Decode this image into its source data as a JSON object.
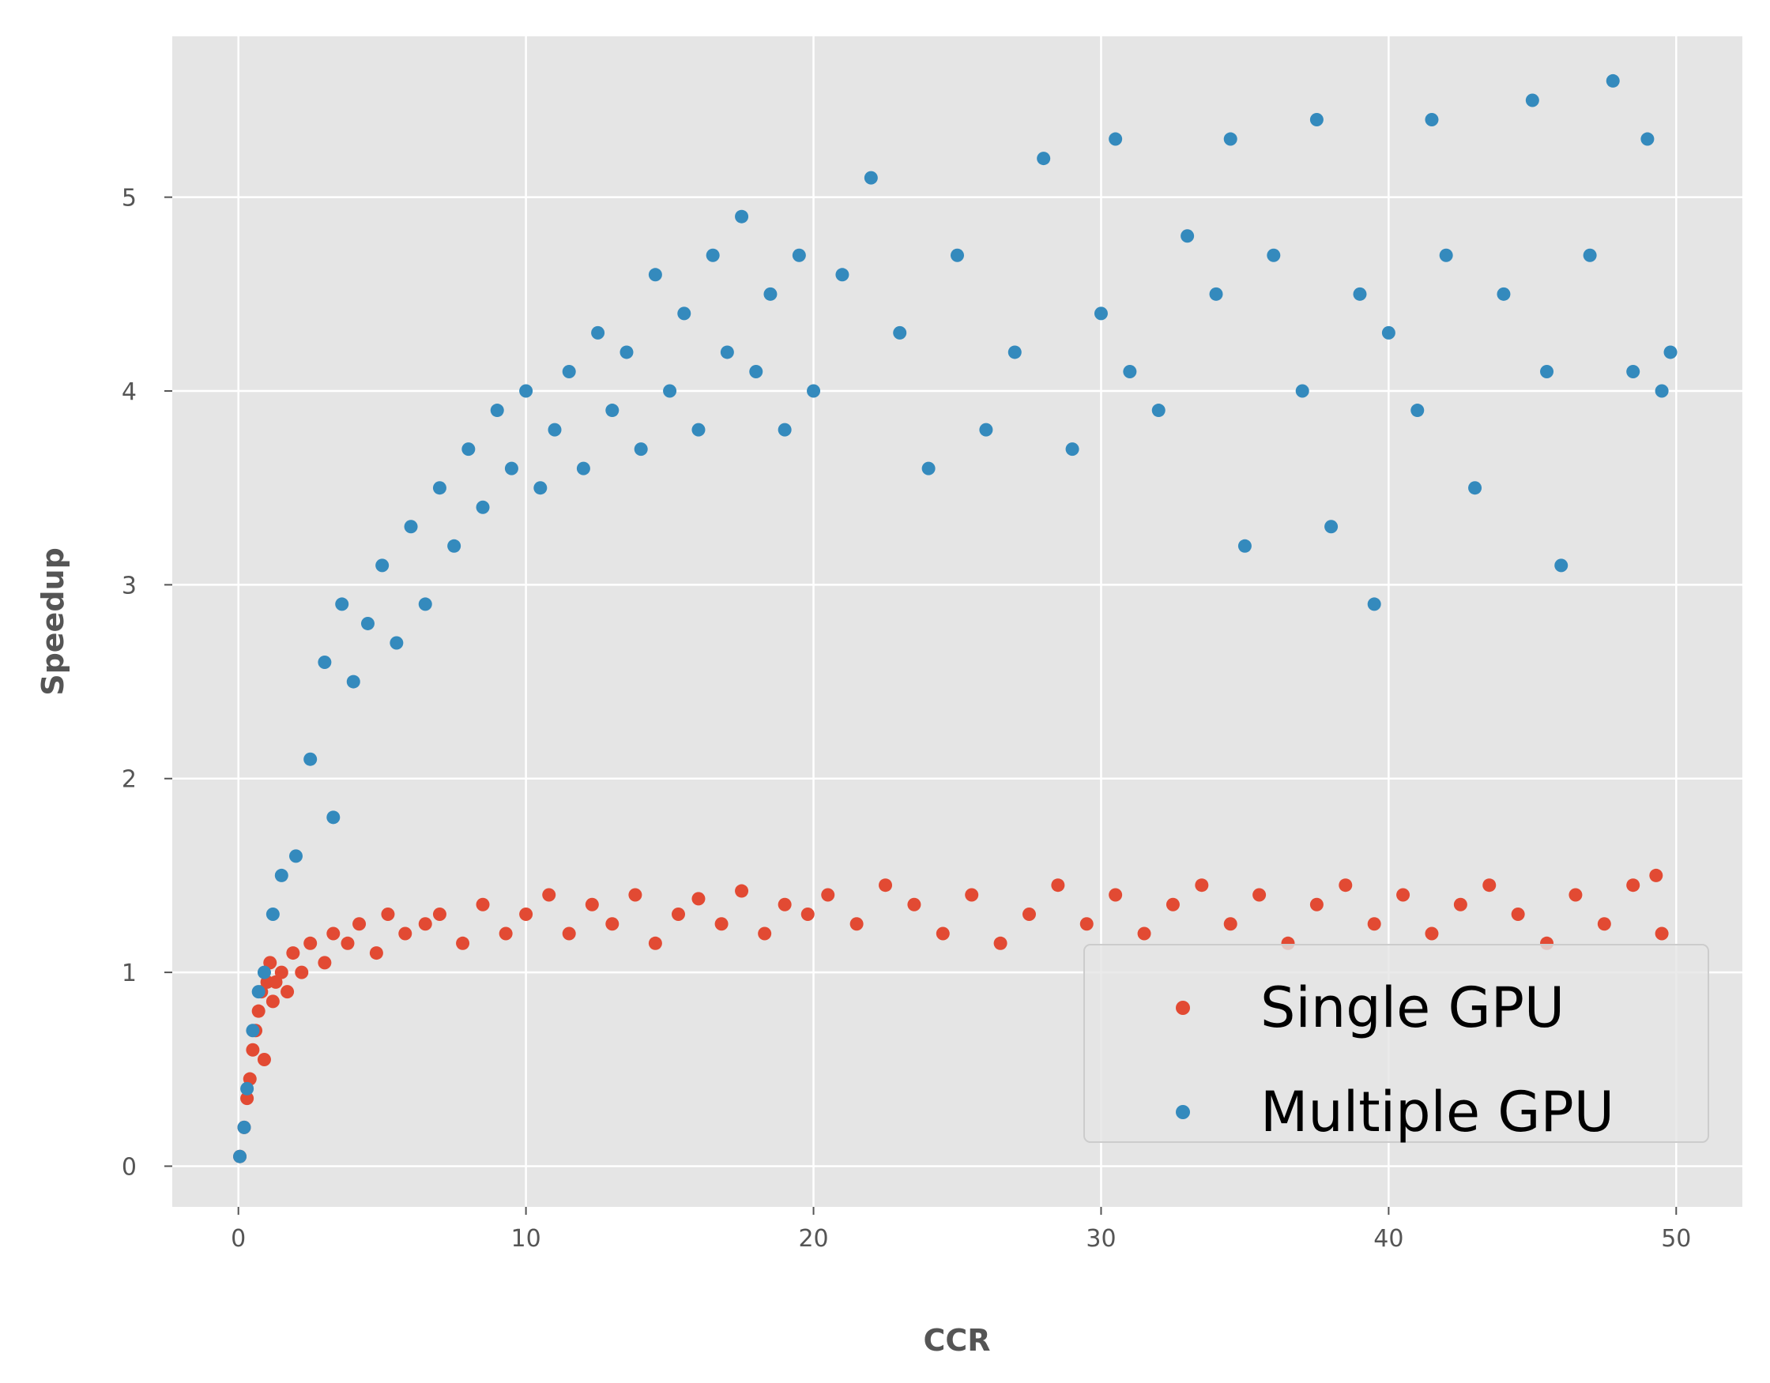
{
  "colors": {
    "single": "#E24A33",
    "multiple": "#348ABD",
    "panel": "#E5E5E5",
    "grid": "#FFFFFF",
    "text": "#555555"
  },
  "chart_data": {
    "type": "scatter",
    "xlabel": "CCR",
    "ylabel": "Speedup",
    "xlim": [
      -2.3,
      52.3
    ],
    "ylim": [
      -0.21,
      5.83
    ],
    "xticks": [
      0,
      10,
      20,
      30,
      40,
      50
    ],
    "yticks": [
      0,
      1,
      2,
      3,
      4,
      5
    ],
    "grid": true,
    "legend_position": "lower right",
    "legend": [
      "Single GPU",
      "Multiple GPU"
    ],
    "series": [
      {
        "name": "Single GPU",
        "color": "#E24A33",
        "points": [
          [
            0.05,
            0.05
          ],
          [
            0.2,
            0.2
          ],
          [
            0.3,
            0.35
          ],
          [
            0.4,
            0.45
          ],
          [
            0.5,
            0.6
          ],
          [
            0.6,
            0.7
          ],
          [
            0.7,
            0.8
          ],
          [
            0.8,
            0.9
          ],
          [
            0.9,
            0.55
          ],
          [
            1.0,
            0.95
          ],
          [
            1.1,
            1.05
          ],
          [
            1.2,
            0.85
          ],
          [
            1.3,
            0.95
          ],
          [
            1.5,
            1.0
          ],
          [
            1.7,
            0.9
          ],
          [
            1.9,
            1.1
          ],
          [
            2.2,
            1.0
          ],
          [
            2.5,
            1.15
          ],
          [
            3.0,
            1.05
          ],
          [
            3.3,
            1.2
          ],
          [
            3.8,
            1.15
          ],
          [
            4.2,
            1.25
          ],
          [
            4.8,
            1.1
          ],
          [
            5.2,
            1.3
          ],
          [
            5.8,
            1.2
          ],
          [
            6.5,
            1.25
          ],
          [
            7.0,
            1.3
          ],
          [
            7.8,
            1.15
          ],
          [
            8.5,
            1.35
          ],
          [
            9.3,
            1.2
          ],
          [
            10.0,
            1.3
          ],
          [
            10.8,
            1.4
          ],
          [
            11.5,
            1.2
          ],
          [
            12.3,
            1.35
          ],
          [
            13.0,
            1.25
          ],
          [
            13.8,
            1.4
          ],
          [
            14.5,
            1.15
          ],
          [
            15.3,
            1.3
          ],
          [
            16.0,
            1.38
          ],
          [
            16.8,
            1.25
          ],
          [
            17.5,
            1.42
          ],
          [
            18.3,
            1.2
          ],
          [
            19.0,
            1.35
          ],
          [
            19.8,
            1.3
          ],
          [
            20.5,
            1.4
          ],
          [
            21.5,
            1.25
          ],
          [
            22.5,
            1.45
          ],
          [
            23.5,
            1.35
          ],
          [
            24.5,
            1.2
          ],
          [
            25.5,
            1.4
          ],
          [
            26.5,
            1.15
          ],
          [
            27.5,
            1.3
          ],
          [
            28.5,
            1.45
          ],
          [
            29.5,
            1.25
          ],
          [
            30.5,
            1.4
          ],
          [
            31.5,
            1.2
          ],
          [
            32.5,
            1.35
          ],
          [
            33.5,
            1.45
          ],
          [
            34.5,
            1.25
          ],
          [
            35.5,
            1.4
          ],
          [
            36.5,
            1.15
          ],
          [
            37.5,
            1.35
          ],
          [
            38.5,
            1.45
          ],
          [
            39.5,
            1.25
          ],
          [
            40.5,
            1.4
          ],
          [
            41.5,
            1.2
          ],
          [
            42.5,
            1.35
          ],
          [
            43.5,
            1.45
          ],
          [
            44.5,
            1.3
          ],
          [
            45.5,
            1.15
          ],
          [
            46.5,
            1.4
          ],
          [
            47.5,
            1.25
          ],
          [
            48.5,
            1.45
          ],
          [
            49.3,
            1.5
          ],
          [
            49.5,
            1.2
          ]
        ]
      },
      {
        "name": "Multiple GPU",
        "color": "#348ABD",
        "points": [
          [
            0.05,
            0.05
          ],
          [
            0.2,
            0.2
          ],
          [
            0.3,
            0.4
          ],
          [
            0.5,
            0.7
          ],
          [
            0.7,
            0.9
          ],
          [
            0.9,
            1.0
          ],
          [
            1.2,
            1.3
          ],
          [
            1.5,
            1.5
          ],
          [
            2.0,
            1.6
          ],
          [
            2.5,
            2.1
          ],
          [
            3.0,
            2.6
          ],
          [
            3.3,
            1.8
          ],
          [
            3.6,
            2.9
          ],
          [
            4.0,
            2.5
          ],
          [
            4.5,
            2.8
          ],
          [
            5.0,
            3.1
          ],
          [
            5.5,
            2.7
          ],
          [
            6.0,
            3.3
          ],
          [
            6.5,
            2.9
          ],
          [
            7.0,
            3.5
          ],
          [
            7.5,
            3.2
          ],
          [
            8.0,
            3.7
          ],
          [
            8.5,
            3.4
          ],
          [
            9.0,
            3.9
          ],
          [
            9.5,
            3.6
          ],
          [
            10.0,
            4.0
          ],
          [
            10.5,
            3.5
          ],
          [
            11.0,
            3.8
          ],
          [
            11.5,
            4.1
          ],
          [
            12.0,
            3.6
          ],
          [
            12.5,
            4.3
          ],
          [
            13.0,
            3.9
          ],
          [
            13.5,
            4.2
          ],
          [
            14.0,
            3.7
          ],
          [
            14.5,
            4.6
          ],
          [
            15.0,
            4.0
          ],
          [
            15.5,
            4.4
          ],
          [
            16.0,
            3.8
          ],
          [
            16.5,
            4.7
          ],
          [
            17.0,
            4.2
          ],
          [
            17.5,
            4.9
          ],
          [
            18.0,
            4.1
          ],
          [
            18.5,
            4.5
          ],
          [
            19.0,
            3.8
          ],
          [
            19.5,
            4.7
          ],
          [
            20.0,
            4.0
          ],
          [
            21.0,
            4.6
          ],
          [
            22.0,
            5.1
          ],
          [
            23.0,
            4.3
          ],
          [
            24.0,
            3.6
          ],
          [
            25.0,
            4.7
          ],
          [
            26.0,
            3.8
          ],
          [
            27.0,
            4.2
          ],
          [
            28.0,
            5.2
          ],
          [
            29.0,
            3.7
          ],
          [
            30.0,
            4.4
          ],
          [
            30.5,
            5.3
          ],
          [
            31.0,
            4.1
          ],
          [
            32.0,
            3.9
          ],
          [
            33.0,
            4.8
          ],
          [
            34.0,
            4.5
          ],
          [
            34.5,
            5.3
          ],
          [
            35.0,
            3.2
          ],
          [
            36.0,
            4.7
          ],
          [
            37.0,
            4.0
          ],
          [
            37.5,
            5.4
          ],
          [
            38.0,
            3.3
          ],
          [
            39.0,
            4.5
          ],
          [
            39.5,
            2.9
          ],
          [
            40.0,
            4.3
          ],
          [
            41.0,
            3.9
          ],
          [
            41.5,
            5.4
          ],
          [
            42.0,
            4.7
          ],
          [
            43.0,
            3.5
          ],
          [
            44.0,
            4.5
          ],
          [
            45.0,
            5.5
          ],
          [
            45.5,
            4.1
          ],
          [
            46.0,
            3.1
          ],
          [
            47.0,
            4.7
          ],
          [
            47.8,
            5.6
          ],
          [
            48.5,
            4.1
          ],
          [
            49.0,
            5.3
          ],
          [
            49.5,
            4.0
          ],
          [
            49.8,
            4.2
          ]
        ]
      }
    ]
  }
}
